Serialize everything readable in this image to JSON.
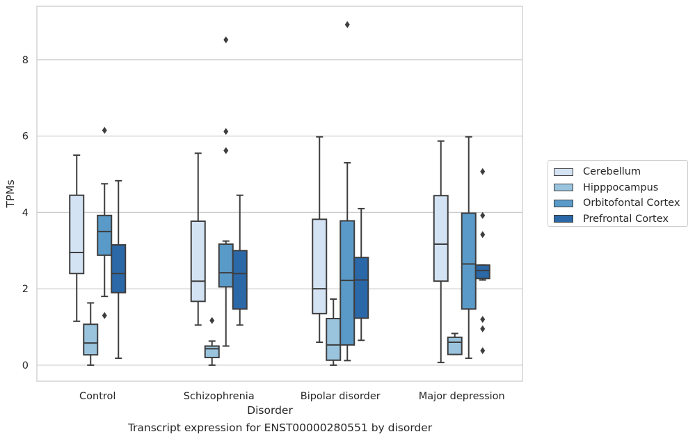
{
  "chart_data": {
    "type": "box",
    "caption": "Transcript expression for ENST00000280551 by disorder",
    "xlabel": "Disorder",
    "ylabel": "TPMs",
    "ylim": [
      -0.42,
      9.4
    ],
    "yticks": [
      0,
      2,
      4,
      6,
      8
    ],
    "grid": "horizontal",
    "legend_position": "right",
    "categories": [
      "Control",
      "Schizophrenia",
      "Bipolar disorder",
      "Major depression"
    ],
    "series": [
      {
        "name": "Cerebellum",
        "color": "#d4e3f3",
        "boxes": [
          {
            "whisker_low": 1.15,
            "q1": 2.4,
            "median": 2.95,
            "q3": 4.45,
            "whisker_high": 5.5,
            "outliers": []
          },
          {
            "whisker_low": 1.05,
            "q1": 1.67,
            "median": 2.2,
            "q3": 3.77,
            "whisker_high": 5.55,
            "outliers": []
          },
          {
            "whisker_low": 0.6,
            "q1": 1.35,
            "median": 2.0,
            "q3": 3.82,
            "whisker_high": 5.98,
            "outliers": []
          },
          {
            "whisker_low": 0.07,
            "q1": 2.2,
            "median": 3.17,
            "q3": 4.44,
            "whisker_high": 5.87,
            "outliers": []
          }
        ]
      },
      {
        "name": "Hipppocampus",
        "color": "#9ac4de",
        "boxes": [
          {
            "whisker_low": 0.0,
            "q1": 0.27,
            "median": 0.58,
            "q3": 1.07,
            "whisker_high": 1.63,
            "outliers": []
          },
          {
            "whisker_low": 0.0,
            "q1": 0.2,
            "median": 0.43,
            "q3": 0.5,
            "whisker_high": 0.63,
            "outliers": [
              1.17
            ]
          },
          {
            "whisker_low": 0.0,
            "q1": 0.13,
            "median": 0.53,
            "q3": 1.22,
            "whisker_high": 1.73,
            "outliers": []
          },
          {
            "whisker_low": 0.28,
            "q1": 0.28,
            "median": 0.6,
            "q3": 0.73,
            "whisker_high": 0.83,
            "outliers": []
          }
        ]
      },
      {
        "name": "Orbitofontal Cortex",
        "color": "#5a9ac8",
        "boxes": [
          {
            "whisker_low": 1.8,
            "q1": 2.88,
            "median": 3.5,
            "q3": 3.92,
            "whisker_high": 4.75,
            "outliers": [
              6.15,
              1.3
            ]
          },
          {
            "whisker_low": 0.5,
            "q1": 2.05,
            "median": 2.42,
            "q3": 3.17,
            "whisker_high": 3.25,
            "outliers": [
              8.52,
              6.12,
              5.62
            ]
          },
          {
            "whisker_low": 0.12,
            "q1": 0.53,
            "median": 2.22,
            "q3": 3.78,
            "whisker_high": 5.3,
            "outliers": [
              8.92
            ]
          },
          {
            "whisker_low": 0.18,
            "q1": 1.47,
            "median": 2.65,
            "q3": 3.98,
            "whisker_high": 5.98,
            "outliers": []
          }
        ]
      },
      {
        "name": "Prefrontal Cortex",
        "color": "#2b68a8",
        "boxes": [
          {
            "whisker_low": 0.18,
            "q1": 1.9,
            "median": 2.4,
            "q3": 3.15,
            "whisker_high": 4.83,
            "outliers": []
          },
          {
            "whisker_low": 1.05,
            "q1": 1.47,
            "median": 2.4,
            "q3": 3.0,
            "whisker_high": 4.45,
            "outliers": []
          },
          {
            "whisker_low": 0.65,
            "q1": 1.23,
            "median": 2.23,
            "q3": 2.82,
            "whisker_high": 4.1,
            "outliers": []
          },
          {
            "whisker_low": 2.23,
            "q1": 2.27,
            "median": 2.48,
            "q3": 2.62,
            "whisker_high": 2.62,
            "outliers": [
              5.07,
              3.92,
              3.42,
              1.2,
              0.95,
              0.38
            ]
          }
        ]
      }
    ]
  }
}
